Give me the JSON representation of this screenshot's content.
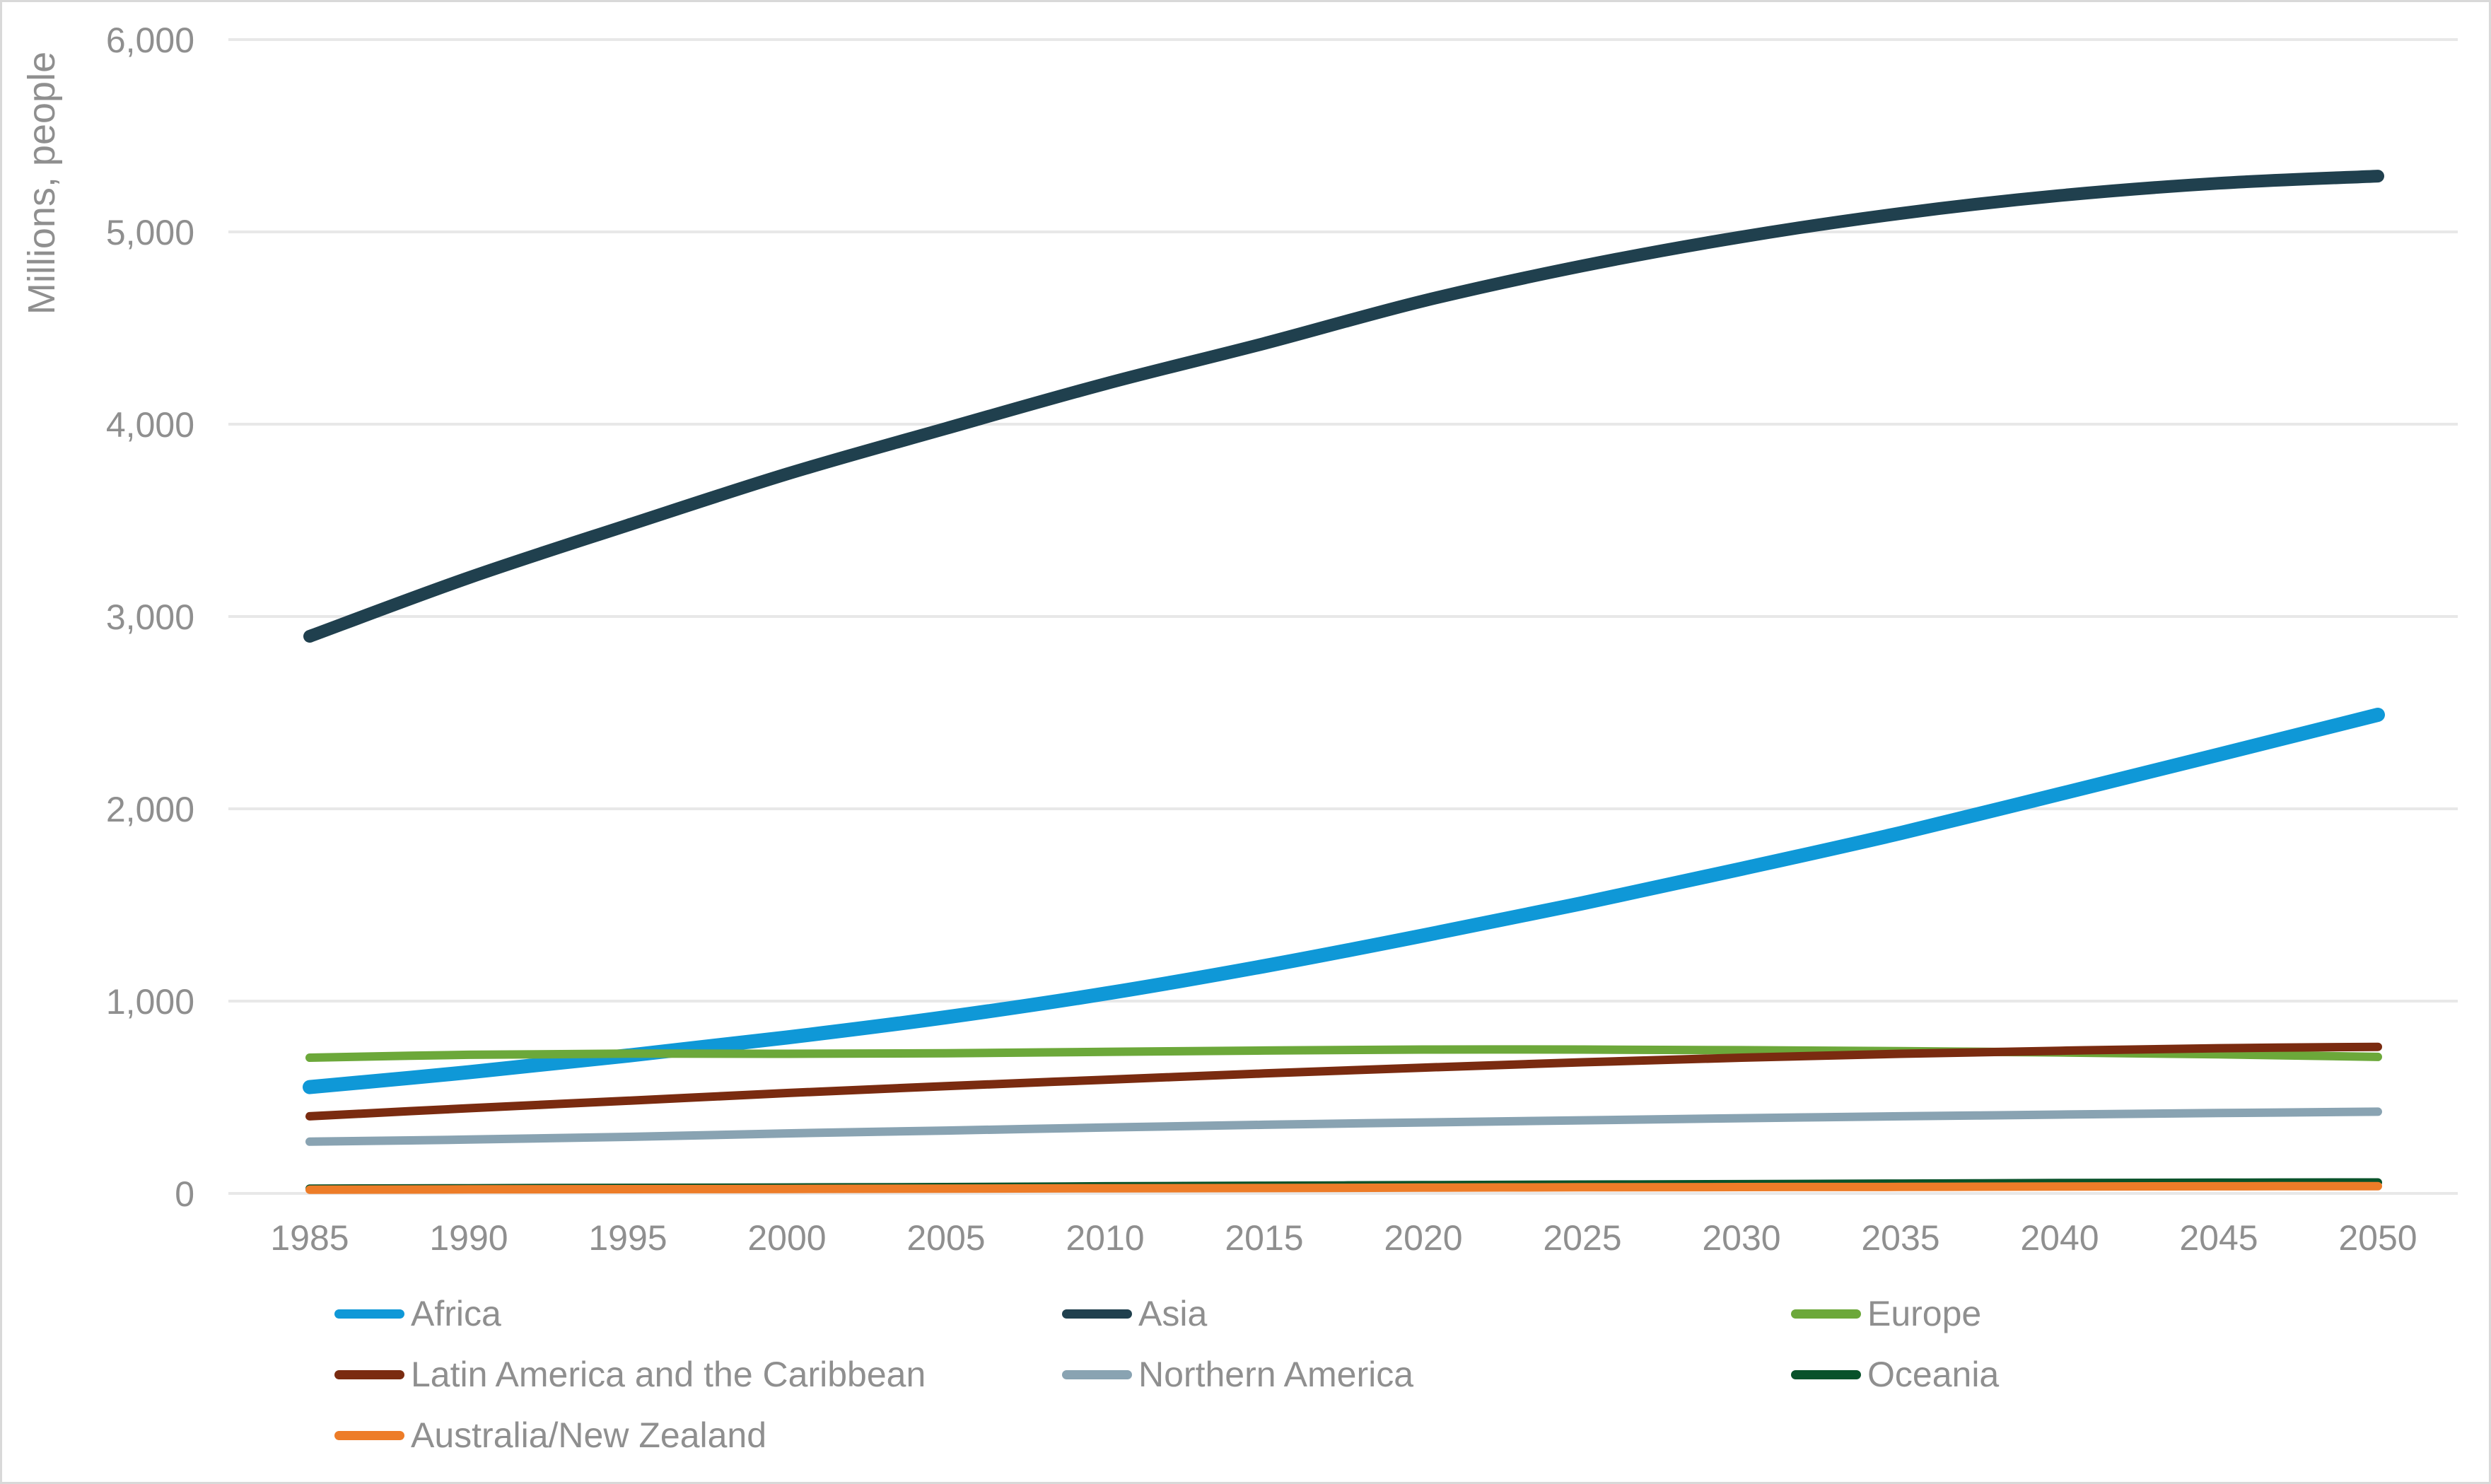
{
  "chart_data": {
    "type": "line",
    "title": "",
    "xlabel": "",
    "ylabel": "Millions, people",
    "ylim": [
      0,
      6000
    ],
    "y_tick_step": 1000,
    "grid": "horizontal",
    "legend_position": "bottom",
    "text_color": "#8f8f8f",
    "grid_color": "#e8e8e8",
    "background_color": "#ffffff",
    "x": [
      1985,
      1990,
      1995,
      2000,
      2005,
      2010,
      2015,
      2020,
      2025,
      2030,
      2035,
      2040,
      2045,
      2050
    ],
    "x_tick_labels": [
      "1985",
      "1990",
      "1995",
      "2000",
      "2005",
      "2010",
      "2015",
      "2020",
      "2025",
      "2030",
      "2035",
      "2040",
      "2045",
      "2050"
    ],
    "y_ticks": [
      {
        "value": 0,
        "label": "0"
      },
      {
        "value": 1000,
        "label": "1,000"
      },
      {
        "value": 2000,
        "label": "2,000"
      },
      {
        "value": 3000,
        "label": "3,000"
      },
      {
        "value": 4000,
        "label": "4,000"
      },
      {
        "value": 5000,
        "label": "5,000"
      },
      {
        "value": 6000,
        "label": "6,000"
      }
    ],
    "series": [
      {
        "name": "Africa",
        "color": "#0f98d7",
        "line_width": 20,
        "values": [
          553,
          630,
          717,
          811,
          916,
          1039,
          1182,
          1341,
          1509,
          1688,
          1874,
          2077,
          2282,
          2489
        ]
      },
      {
        "name": "Asia",
        "color": "#20404e",
        "line_width": 18,
        "values": [
          2897,
          3202,
          3475,
          3741,
          3978,
          4210,
          4420,
          4641,
          4823,
          4974,
          5096,
          5189,
          5253,
          5290
        ]
      },
      {
        "name": "Europe",
        "color": "#6ca83a",
        "line_width": 12,
        "values": [
          706,
          721,
          727,
          726,
          729,
          736,
          743,
          748,
          748,
          745,
          740,
          733,
          723,
          710
        ]
      },
      {
        "name": "Latin America and the Caribbean",
        "color": "#7a2b10",
        "line_width": 12,
        "values": [
          401,
          443,
          482,
          522,
          558,
          591,
          624,
          654,
          682,
          706,
          726,
          742,
          755,
          762
        ]
      },
      {
        "name": "Northern America",
        "color": "#89a3b2",
        "line_width": 12,
        "values": [
          269,
          280,
          294,
          312,
          327,
          343,
          357,
          369,
          380,
          391,
          401,
          410,
          418,
          425
        ]
      },
      {
        "name": "Oceania",
        "color": "#08522a",
        "line_width": 12,
        "values": [
          25,
          27,
          29,
          31,
          33,
          37,
          40,
          43,
          46,
          48,
          51,
          54,
          56,
          57
        ]
      },
      {
        "name": "Australia/New Zealand",
        "color": "#ed7c28",
        "line_width": 12,
        "values": [
          19,
          21,
          22,
          23,
          25,
          27,
          28,
          30,
          32,
          33,
          34,
          36,
          37,
          38
        ]
      }
    ]
  },
  "legend": {
    "entries": [
      {
        "label": "Africa",
        "color": "#0f98d7",
        "row": 0,
        "col": 0
      },
      {
        "label": "Asia",
        "color": "#20404e",
        "row": 0,
        "col": 1
      },
      {
        "label": "Europe",
        "color": "#6ca83a",
        "row": 0,
        "col": 2
      },
      {
        "label": "Latin America and the Caribbean",
        "color": "#7a2b10",
        "row": 1,
        "col": 0
      },
      {
        "label": "Northern America",
        "color": "#89a3b2",
        "row": 1,
        "col": 1
      },
      {
        "label": "Oceania",
        "color": "#08522a",
        "row": 1,
        "col": 2
      },
      {
        "label": "Australia/New Zealand",
        "color": "#ed7c28",
        "row": 2,
        "col": 0
      }
    ]
  }
}
